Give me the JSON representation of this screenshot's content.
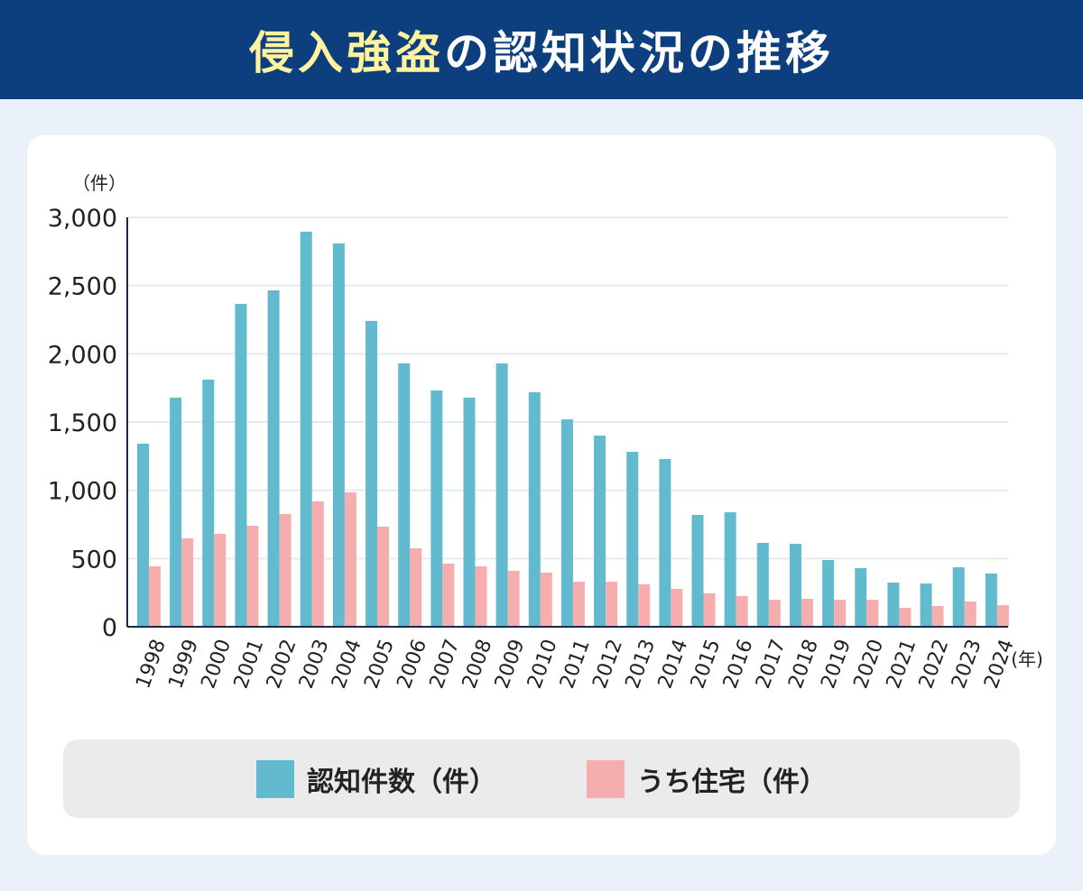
{
  "title": {
    "highlight": "侵入強盗",
    "rest": "の認知状況の推移"
  },
  "colors": {
    "header_bg": "#0d3f7f",
    "highlight": "#fff3a0",
    "series1": "#62bacf",
    "series2": "#f6adad"
  },
  "chart_data": {
    "type": "bar",
    "ylabel": "（件）",
    "xlabel": "(年)",
    "ylim": [
      0,
      3000
    ],
    "yticks": [
      0,
      500,
      1000,
      1500,
      2000,
      2500,
      3000
    ],
    "ytick_labels": [
      "0",
      "500",
      "1,000",
      "1,500",
      "2,000",
      "2,500",
      "3,000"
    ],
    "grid": true,
    "legend_position": "bottom",
    "categories": [
      "1998",
      "1999",
      "2000",
      "2001",
      "2002",
      "2003",
      "2004",
      "2005",
      "2006",
      "2007",
      "2008",
      "2009",
      "2010",
      "2011",
      "2012",
      "2013",
      "2014",
      "2015",
      "2016",
      "2017",
      "2018",
      "2019",
      "2020",
      "2021",
      "2022",
      "2023",
      "2024"
    ],
    "series": [
      {
        "name": "認知件数（件）",
        "color": "#62bacf",
        "values": [
          1342,
          1679,
          1811,
          2366,
          2465,
          2895,
          2809,
          2241,
          1930,
          1732,
          1679,
          1930,
          1719,
          1520,
          1401,
          1282,
          1229,
          820,
          839,
          615,
          608,
          489,
          430,
          324,
          317,
          436,
          390
        ]
      },
      {
        "name": "うち住宅（件）",
        "color": "#f6adad",
        "values": [
          443,
          648,
          681,
          740,
          826,
          919,
          985,
          734,
          575,
          463,
          443,
          410,
          397,
          330,
          330,
          311,
          278,
          245,
          225,
          198,
          205,
          198,
          198,
          139,
          152,
          185,
          159
        ]
      }
    ]
  }
}
